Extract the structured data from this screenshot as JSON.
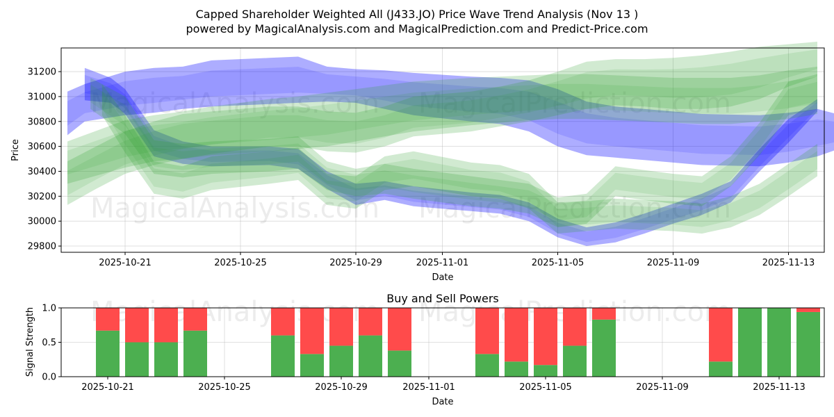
{
  "chart_data": [
    {
      "type": "area",
      "title": "Capped Shareholder Weighted All (J433.JO) Price Wave Trend Analysis (Nov 13 )",
      "subtitle": "powered by MagicalAnalysis.com and MagicalPrediction.com and Predict-Price.com",
      "xlabel": "Date",
      "ylabel": "Price",
      "x_ticks": [
        "2025-10-21",
        "2025-10-25",
        "2025-10-29",
        "2025-11-01",
        "2025-11-05",
        "2025-11-09",
        "2025-11-13"
      ],
      "y_ticks": [
        29800,
        30000,
        30200,
        30400,
        30600,
        30800,
        31000,
        31200
      ],
      "ylim": [
        29750,
        31390
      ],
      "grid": true,
      "colors": {
        "blue_band": "#0000ff",
        "green_band": "#2ca02c"
      },
      "series": [
        {
          "name": "blue-wave-upper",
          "color": "blue",
          "x": [
            -2.0,
            -1.4,
            0,
            1,
            2,
            3,
            5,
            6,
            7,
            8,
            9,
            10,
            12,
            13,
            14,
            15,
            16,
            17,
            18,
            19,
            20,
            22,
            23,
            24,
            25
          ],
          "low": [
            30690,
            30800,
            30850,
            30870,
            30900,
            30920,
            30940,
            30950,
            30960,
            30950,
            30900,
            30850,
            30800,
            30780,
            30720,
            30600,
            30530,
            30510,
            30490,
            30470,
            30450,
            30440,
            30470,
            30520,
            30600
          ],
          "high": [
            31040,
            31100,
            31200,
            31230,
            31240,
            31290,
            31310,
            31320,
            31240,
            31220,
            31210,
            31190,
            31160,
            31150,
            31130,
            31060,
            30960,
            30920,
            30900,
            30880,
            30860,
            30850,
            30870,
            30900,
            30840
          ]
        },
        {
          "name": "blue-wave-lower",
          "color": "blue",
          "x": [
            -1.4,
            -0.5,
            0,
            1,
            2,
            3,
            5,
            6,
            7,
            8,
            9,
            10,
            12,
            13,
            14,
            15,
            16,
            17,
            18,
            19,
            20,
            21,
            22,
            23,
            24
          ],
          "low": [
            30970,
            30950,
            30860,
            30520,
            30460,
            30440,
            30450,
            30420,
            30260,
            30130,
            30170,
            30120,
            30080,
            30060,
            30000,
            29870,
            29800,
            29830,
            29900,
            29980,
            30050,
            30150,
            30400,
            30630,
            30880
          ],
          "high": [
            31230,
            31150,
            31060,
            30730,
            30640,
            30600,
            30600,
            30580,
            30400,
            30300,
            30320,
            30280,
            30230,
            30210,
            30150,
            30020,
            29950,
            29990,
            30060,
            30140,
            30220,
            30320,
            30580,
            30820,
            30980
          ]
        },
        {
          "name": "green-wave-1",
          "color": "green",
          "x": [
            -2.0,
            0,
            1,
            2,
            3,
            5,
            6,
            7,
            8,
            9,
            10,
            12,
            13,
            14,
            15,
            16,
            17,
            18,
            19,
            20,
            21,
            22,
            23,
            24
          ],
          "low": [
            30300,
            30430,
            30480,
            30500,
            30530,
            30560,
            30580,
            30600,
            30640,
            30680,
            30720,
            30770,
            30790,
            30810,
            30820,
            30820,
            30810,
            30800,
            30790,
            30780,
            30780,
            30800,
            30820,
            30860
          ],
          "high": [
            30640,
            30810,
            30850,
            30880,
            30920,
            30980,
            31000,
            31030,
            31060,
            31090,
            31120,
            31150,
            31160,
            31170,
            31180,
            31180,
            31170,
            31160,
            31150,
            31150,
            31150,
            31170,
            31210,
            31240
          ]
        },
        {
          "name": "green-wave-2",
          "color": "green",
          "x": [
            -2.0,
            -1.0,
            0,
            1,
            2,
            3,
            4,
            5,
            6,
            7,
            8,
            9,
            10,
            12,
            13,
            14,
            15,
            16,
            17,
            18,
            19,
            20,
            21,
            22,
            23,
            24
          ],
          "low": [
            30130,
            30260,
            30380,
            30450,
            30500,
            30540,
            30570,
            30600,
            30600,
            30560,
            30550,
            30600,
            30680,
            30720,
            30760,
            30800,
            30850,
            30900,
            30930,
            30920,
            30900,
            30900,
            30920,
            30980,
            31080,
            31160
          ],
          "high": [
            30480,
            30600,
            30720,
            30800,
            30860,
            30880,
            30900,
            30920,
            30920,
            30880,
            30870,
            30920,
            31000,
            31040,
            31080,
            31130,
            31200,
            31280,
            31300,
            31300,
            31310,
            31330,
            31360,
            31400,
            31420,
            31440
          ]
        },
        {
          "name": "green-wave-3",
          "color": "green",
          "x": [
            -1.2,
            0,
            1,
            2,
            3,
            5,
            6,
            7,
            8,
            9,
            10,
            12,
            13,
            14,
            15,
            16,
            17,
            18,
            19,
            20,
            21,
            22,
            23,
            24
          ],
          "low": [
            30900,
            30700,
            30380,
            30350,
            30380,
            30400,
            30420,
            30250,
            30200,
            30220,
            30180,
            30120,
            30100,
            30060,
            29950,
            29980,
            30200,
            30170,
            30140,
            30120,
            30280,
            30530,
            30850,
            30900
          ],
          "high": [
            31150,
            31000,
            30650,
            30620,
            30640,
            30660,
            30680,
            30480,
            30420,
            30460,
            30420,
            30360,
            30330,
            30300,
            30190,
            30220,
            30440,
            30410,
            30380,
            30360,
            30520,
            30790,
            31120,
            31180
          ]
        },
        {
          "name": "green-wave-4",
          "color": "green",
          "x": [
            -0.8,
            0,
            1,
            2,
            3,
            5,
            6,
            7,
            8,
            9,
            10,
            12,
            13,
            14,
            15,
            16,
            17,
            18,
            19,
            20,
            21,
            22,
            23,
            24
          ],
          "low": [
            30850,
            30550,
            30220,
            30180,
            30250,
            30300,
            30330,
            30130,
            30100,
            30250,
            30280,
            30200,
            30180,
            30100,
            29900,
            29920,
            29940,
            29930,
            29920,
            29900,
            29950,
            30050,
            30200,
            30360
          ],
          "high": [
            31100,
            30850,
            30480,
            30440,
            30520,
            30560,
            30590,
            30380,
            30360,
            30520,
            30560,
            30470,
            30450,
            30380,
            30150,
            30160,
            30180,
            30170,
            30160,
            30140,
            30200,
            30300,
            30460,
            30620
          ]
        }
      ]
    },
    {
      "type": "bar",
      "title": "Buy and Sell Powers",
      "xlabel": "Date",
      "ylabel": "Signal Strength",
      "x_ticks": [
        "2025-10-21",
        "2025-10-25",
        "2025-10-29",
        "2025-11-01",
        "2025-11-05",
        "2025-11-09",
        "2025-11-13"
      ],
      "y_ticks": [
        0.0,
        0.5,
        1.0
      ],
      "y_tick_labels": [
        "0.0",
        "0.5",
        "1.0"
      ],
      "ylim": [
        0,
        1
      ],
      "colors": {
        "buy": "#4caf50",
        "sell": "#ff4b4b"
      },
      "series": [
        {
          "name": "buy",
          "x": [
            0,
            1,
            2,
            3,
            6,
            7,
            8,
            9,
            10,
            13,
            14,
            15,
            16,
            17,
            21,
            22,
            23,
            24
          ],
          "values": [
            0.67,
            0.5,
            0.5,
            0.67,
            0.6,
            0.33,
            0.45,
            0.6,
            0.38,
            0.33,
            0.22,
            0.17,
            0.45,
            0.83,
            0.22,
            1.0,
            1.0,
            0.94
          ]
        },
        {
          "name": "sell",
          "x": [
            0,
            1,
            2,
            3,
            6,
            7,
            8,
            9,
            10,
            13,
            14,
            15,
            16,
            17,
            21,
            22,
            23,
            24
          ],
          "values": [
            0.33,
            0.5,
            0.5,
            0.33,
            0.4,
            0.67,
            0.55,
            0.4,
            0.62,
            0.67,
            0.78,
            0.83,
            0.55,
            0.17,
            0.78,
            0.0,
            0.0,
            0.06
          ]
        }
      ]
    }
  ],
  "watermarks": [
    "MagicalAnalysis.com",
    "MagicalPrediction.com",
    "MagicalAnalysis.com",
    "MagicalPrediction.com",
    "MagicalAnalysis.com",
    "MagicalPrediction.com"
  ]
}
